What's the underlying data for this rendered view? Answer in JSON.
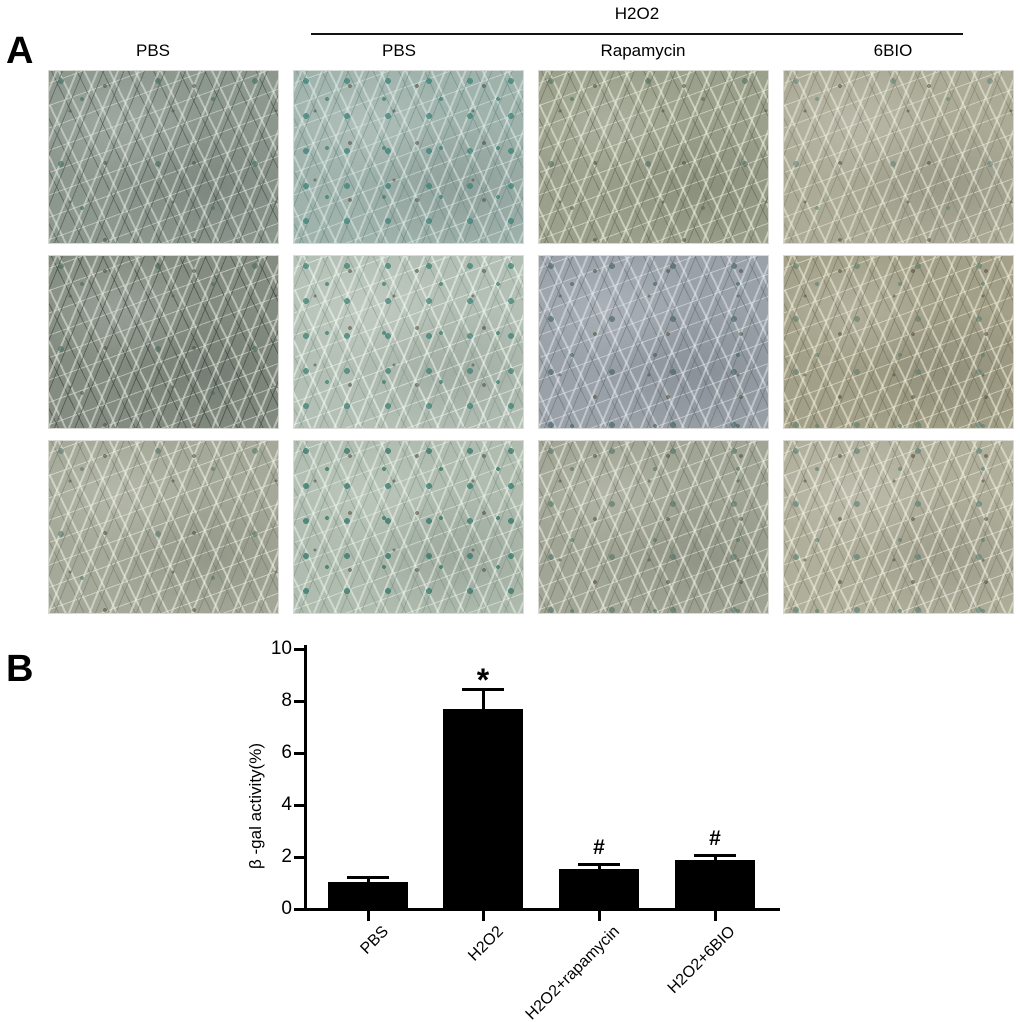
{
  "panel_a": {
    "label": "A",
    "group_header": "H2O2",
    "column_labels": [
      "PBS",
      "PBS",
      "Rapamycin",
      "6BIO"
    ],
    "speck_color": "rgba(80,74,58,0.55)",
    "micrographs": [
      {
        "row": 1,
        "col": 1,
        "treatment": "PBS",
        "base": "#8c978e",
        "light": "rgba(230,235,225,0.50)",
        "dark": "rgba(58,70,62,0.50)",
        "dot": "rgba(75,115,105,0.70)",
        "density": "sparse"
      },
      {
        "row": 1,
        "col": 2,
        "treatment": "H2O2 PBS",
        "base": "#a0b2ac",
        "light": "rgba(225,238,233,0.50)",
        "dark": "rgba(90,130,122,0.45)",
        "dot": "rgba(60,130,120,0.75)",
        "density": "dense"
      },
      {
        "row": 1,
        "col": 3,
        "treatment": "H2O2 Rapamycin",
        "base": "#9aa08b",
        "light": "rgba(235,238,220,0.55)",
        "dark": "rgba(92,98,75,0.50)",
        "dot": "rgba(80,110,95,0.60)",
        "density": "sparse"
      },
      {
        "row": 1,
        "col": 4,
        "treatment": "H2O2 6BIO",
        "base": "#acab98",
        "light": "rgba(240,240,225,0.50)",
        "dark": "rgba(120,118,95,0.45)",
        "dot": "rgba(95,130,118,0.55)",
        "density": "sparse"
      },
      {
        "row": 2,
        "col": 1,
        "treatment": "PBS",
        "base": "#848c82",
        "light": "rgba(225,230,218,0.55)",
        "dark": "rgba(50,60,52,0.55)",
        "dot": "rgba(70,105,95,0.60)",
        "density": "sparse"
      },
      {
        "row": 2,
        "col": 2,
        "treatment": "H2O2 PBS",
        "base": "#b4c0b5",
        "light": "rgba(240,248,240,0.55)",
        "dark": "rgba(120,145,132,0.45)",
        "dot": "rgba(55,125,113,0.70)",
        "density": "dense"
      },
      {
        "row": 2,
        "col": 3,
        "treatment": "H2O2 Rapamycin",
        "base": "#9aa1a8",
        "light": "rgba(230,236,240,0.50)",
        "dark": "rgba(95,105,115,0.50)",
        "dot": "rgba(70,100,105,0.65)",
        "density": "medium"
      },
      {
        "row": 2,
        "col": 4,
        "treatment": "H2O2 6BIO",
        "base": "#a3a089",
        "light": "rgba(238,235,215,0.55)",
        "dark": "rgba(110,106,80,0.50)",
        "dot": "rgba(90,125,110,0.60)",
        "density": "medium"
      },
      {
        "row": 3,
        "col": 1,
        "treatment": "PBS",
        "base": "#a5a999",
        "light": "rgba(238,240,228,0.55)",
        "dark": "rgba(110,116,98,0.50)",
        "dot": "rgba(85,120,108,0.60)",
        "density": "sparse"
      },
      {
        "row": 3,
        "col": 2,
        "treatment": "H2O2 PBS",
        "base": "#afbcaf",
        "light": "rgba(240,246,238,0.50)",
        "dark": "rgba(115,140,128,0.45)",
        "dot": "rgba(50,118,105,0.75)",
        "density": "dense"
      },
      {
        "row": 3,
        "col": 3,
        "treatment": "H2O2 Rapamycin",
        "base": "#a1a595",
        "light": "rgba(236,238,226,0.55)",
        "dark": "rgba(105,110,92,0.50)",
        "dot": "rgba(80,115,102,0.60)",
        "density": "medium"
      },
      {
        "row": 3,
        "col": 4,
        "treatment": "H2O2 6BIO",
        "base": "#b0af9c",
        "light": "rgba(242,240,226,0.55)",
        "dark": "rgba(118,115,92,0.45)",
        "dot": "rgba(85,125,112,0.60)",
        "density": "medium"
      }
    ]
  },
  "panel_b": {
    "label": "B"
  },
  "chart_data": {
    "type": "bar",
    "categories": [
      "PBS",
      "H2O2",
      "H2O2+rapamycin",
      "H2O2+6BIO"
    ],
    "values": [
      1.05,
      7.7,
      1.55,
      1.9
    ],
    "errors": [
      0.1,
      0.7,
      0.12,
      0.1
    ],
    "annotations": [
      "",
      "*",
      "#",
      "#"
    ],
    "title": "",
    "xlabel": "",
    "ylabel": "β -gal activity(%)",
    "ylim": [
      0,
      10
    ],
    "yticks": [
      0,
      2,
      4,
      6,
      8,
      10
    ],
    "bar_color": "#000000",
    "grid": "off",
    "legend": "none"
  }
}
